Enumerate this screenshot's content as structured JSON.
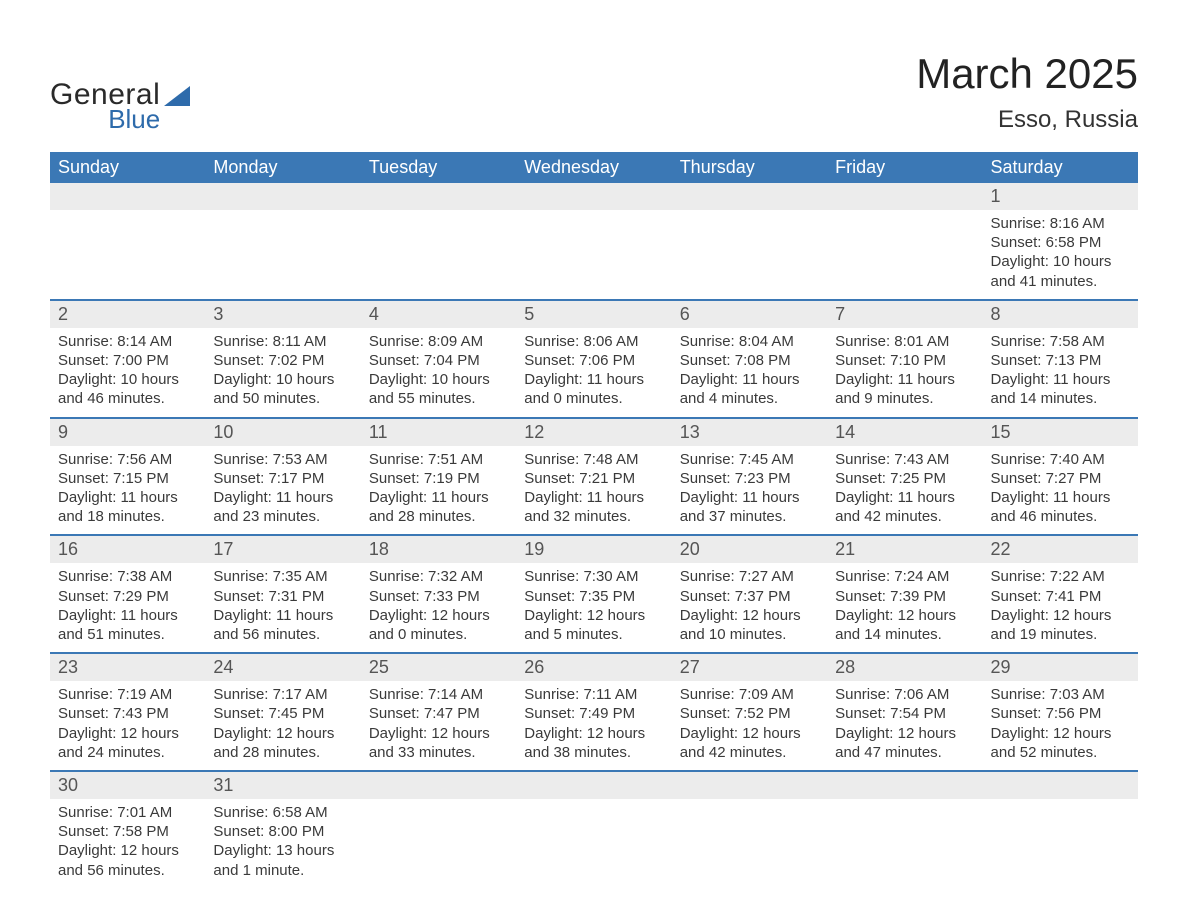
{
  "logo": {
    "general": "General",
    "blue": "Blue",
    "shape_color": "#2e6bab"
  },
  "title": "March 2025",
  "location": "Esso, Russia",
  "colors": {
    "header_bg": "#3b78b5",
    "header_text": "#ffffff",
    "daynum_bg": "#ececec",
    "row_border": "#3b78b5",
    "body_text": "#3a3a3a",
    "page_bg": "#ffffff"
  },
  "typography": {
    "title_fontsize": 42,
    "location_fontsize": 24,
    "weekday_fontsize": 18,
    "daynum_fontsize": 18,
    "detail_fontsize": 15
  },
  "layout": {
    "columns": 7,
    "weeks": 6
  },
  "weekdays": [
    "Sunday",
    "Monday",
    "Tuesday",
    "Wednesday",
    "Thursday",
    "Friday",
    "Saturday"
  ],
  "weeks": [
    [
      null,
      null,
      null,
      null,
      null,
      null,
      {
        "n": "1",
        "sunrise": "Sunrise: 8:16 AM",
        "sunset": "Sunset: 6:58 PM",
        "day1": "Daylight: 10 hours",
        "day2": "and 41 minutes."
      }
    ],
    [
      {
        "n": "2",
        "sunrise": "Sunrise: 8:14 AM",
        "sunset": "Sunset: 7:00 PM",
        "day1": "Daylight: 10 hours",
        "day2": "and 46 minutes."
      },
      {
        "n": "3",
        "sunrise": "Sunrise: 8:11 AM",
        "sunset": "Sunset: 7:02 PM",
        "day1": "Daylight: 10 hours",
        "day2": "and 50 minutes."
      },
      {
        "n": "4",
        "sunrise": "Sunrise: 8:09 AM",
        "sunset": "Sunset: 7:04 PM",
        "day1": "Daylight: 10 hours",
        "day2": "and 55 minutes."
      },
      {
        "n": "5",
        "sunrise": "Sunrise: 8:06 AM",
        "sunset": "Sunset: 7:06 PM",
        "day1": "Daylight: 11 hours",
        "day2": "and 0 minutes."
      },
      {
        "n": "6",
        "sunrise": "Sunrise: 8:04 AM",
        "sunset": "Sunset: 7:08 PM",
        "day1": "Daylight: 11 hours",
        "day2": "and 4 minutes."
      },
      {
        "n": "7",
        "sunrise": "Sunrise: 8:01 AM",
        "sunset": "Sunset: 7:10 PM",
        "day1": "Daylight: 11 hours",
        "day2": "and 9 minutes."
      },
      {
        "n": "8",
        "sunrise": "Sunrise: 7:58 AM",
        "sunset": "Sunset: 7:13 PM",
        "day1": "Daylight: 11 hours",
        "day2": "and 14 minutes."
      }
    ],
    [
      {
        "n": "9",
        "sunrise": "Sunrise: 7:56 AM",
        "sunset": "Sunset: 7:15 PM",
        "day1": "Daylight: 11 hours",
        "day2": "and 18 minutes."
      },
      {
        "n": "10",
        "sunrise": "Sunrise: 7:53 AM",
        "sunset": "Sunset: 7:17 PM",
        "day1": "Daylight: 11 hours",
        "day2": "and 23 minutes."
      },
      {
        "n": "11",
        "sunrise": "Sunrise: 7:51 AM",
        "sunset": "Sunset: 7:19 PM",
        "day1": "Daylight: 11 hours",
        "day2": "and 28 minutes."
      },
      {
        "n": "12",
        "sunrise": "Sunrise: 7:48 AM",
        "sunset": "Sunset: 7:21 PM",
        "day1": "Daylight: 11 hours",
        "day2": "and 32 minutes."
      },
      {
        "n": "13",
        "sunrise": "Sunrise: 7:45 AM",
        "sunset": "Sunset: 7:23 PM",
        "day1": "Daylight: 11 hours",
        "day2": "and 37 minutes."
      },
      {
        "n": "14",
        "sunrise": "Sunrise: 7:43 AM",
        "sunset": "Sunset: 7:25 PM",
        "day1": "Daylight: 11 hours",
        "day2": "and 42 minutes."
      },
      {
        "n": "15",
        "sunrise": "Sunrise: 7:40 AM",
        "sunset": "Sunset: 7:27 PM",
        "day1": "Daylight: 11 hours",
        "day2": "and 46 minutes."
      }
    ],
    [
      {
        "n": "16",
        "sunrise": "Sunrise: 7:38 AM",
        "sunset": "Sunset: 7:29 PM",
        "day1": "Daylight: 11 hours",
        "day2": "and 51 minutes."
      },
      {
        "n": "17",
        "sunrise": "Sunrise: 7:35 AM",
        "sunset": "Sunset: 7:31 PM",
        "day1": "Daylight: 11 hours",
        "day2": "and 56 minutes."
      },
      {
        "n": "18",
        "sunrise": "Sunrise: 7:32 AM",
        "sunset": "Sunset: 7:33 PM",
        "day1": "Daylight: 12 hours",
        "day2": "and 0 minutes."
      },
      {
        "n": "19",
        "sunrise": "Sunrise: 7:30 AM",
        "sunset": "Sunset: 7:35 PM",
        "day1": "Daylight: 12 hours",
        "day2": "and 5 minutes."
      },
      {
        "n": "20",
        "sunrise": "Sunrise: 7:27 AM",
        "sunset": "Sunset: 7:37 PM",
        "day1": "Daylight: 12 hours",
        "day2": "and 10 minutes."
      },
      {
        "n": "21",
        "sunrise": "Sunrise: 7:24 AM",
        "sunset": "Sunset: 7:39 PM",
        "day1": "Daylight: 12 hours",
        "day2": "and 14 minutes."
      },
      {
        "n": "22",
        "sunrise": "Sunrise: 7:22 AM",
        "sunset": "Sunset: 7:41 PM",
        "day1": "Daylight: 12 hours",
        "day2": "and 19 minutes."
      }
    ],
    [
      {
        "n": "23",
        "sunrise": "Sunrise: 7:19 AM",
        "sunset": "Sunset: 7:43 PM",
        "day1": "Daylight: 12 hours",
        "day2": "and 24 minutes."
      },
      {
        "n": "24",
        "sunrise": "Sunrise: 7:17 AM",
        "sunset": "Sunset: 7:45 PM",
        "day1": "Daylight: 12 hours",
        "day2": "and 28 minutes."
      },
      {
        "n": "25",
        "sunrise": "Sunrise: 7:14 AM",
        "sunset": "Sunset: 7:47 PM",
        "day1": "Daylight: 12 hours",
        "day2": "and 33 minutes."
      },
      {
        "n": "26",
        "sunrise": "Sunrise: 7:11 AM",
        "sunset": "Sunset: 7:49 PM",
        "day1": "Daylight: 12 hours",
        "day2": "and 38 minutes."
      },
      {
        "n": "27",
        "sunrise": "Sunrise: 7:09 AM",
        "sunset": "Sunset: 7:52 PM",
        "day1": "Daylight: 12 hours",
        "day2": "and 42 minutes."
      },
      {
        "n": "28",
        "sunrise": "Sunrise: 7:06 AM",
        "sunset": "Sunset: 7:54 PM",
        "day1": "Daylight: 12 hours",
        "day2": "and 47 minutes."
      },
      {
        "n": "29",
        "sunrise": "Sunrise: 7:03 AM",
        "sunset": "Sunset: 7:56 PM",
        "day1": "Daylight: 12 hours",
        "day2": "and 52 minutes."
      }
    ],
    [
      {
        "n": "30",
        "sunrise": "Sunrise: 7:01 AM",
        "sunset": "Sunset: 7:58 PM",
        "day1": "Daylight: 12 hours",
        "day2": "and 56 minutes."
      },
      {
        "n": "31",
        "sunrise": "Sunrise: 6:58 AM",
        "sunset": "Sunset: 8:00 PM",
        "day1": "Daylight: 13 hours",
        "day2": "and 1 minute."
      },
      null,
      null,
      null,
      null,
      null
    ]
  ]
}
